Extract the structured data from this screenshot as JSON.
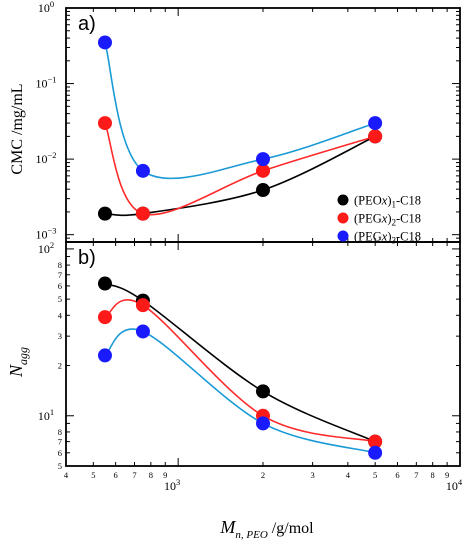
{
  "chart_data": [
    {
      "type": "scatter",
      "panel_label": "a)",
      "ylabel": "CMC /mg/mL",
      "xscale": "log",
      "yscale": "log",
      "xlim": [
        400,
        10000
      ],
      "ylim": [
        0.0008,
        1
      ],
      "y_tick_labels": [
        {
          "v": 1,
          "mant": "10",
          "exp": "0"
        },
        {
          "v": 0.1,
          "mant": "10",
          "exp": "−1"
        },
        {
          "v": 0.01,
          "mant": "10",
          "exp": "−2"
        },
        {
          "v": 0.001,
          "mant": "10",
          "exp": "−3"
        }
      ],
      "series": [
        {
          "name": "(PEOx)1-C18",
          "color": "#000000",
          "line_color": "#000000",
          "x": [
            550,
            750,
            2000,
            5000
          ],
          "y": [
            0.0019,
            0.0019,
            0.0039,
            0.02
          ]
        },
        {
          "name": "(PEGx)2-C18",
          "color": "#ff1a1a",
          "line_color": "#ff2a2a",
          "x": [
            550,
            750,
            2000,
            5000
          ],
          "y": [
            0.03,
            0.0019,
            0.007,
            0.02
          ]
        },
        {
          "name": "(PEGx)3-C18",
          "color": "#1a1aff",
          "line_color": "#1a9ad6",
          "x": [
            550,
            750,
            2000,
            5000
          ],
          "y": [
            0.35,
            0.007,
            0.01,
            0.03
          ]
        }
      ]
    },
    {
      "type": "scatter",
      "panel_label": "b)",
      "ylabel": "N",
      "ylabel_sub": "agg",
      "xlabel": "M",
      "xlabel_sub": "n, PEO",
      "xlabel_rest": " /g/mol",
      "xscale": "log",
      "yscale": "log",
      "xlim": [
        400,
        10000
      ],
      "ylim": [
        5,
        110
      ],
      "x_tick_labels": [
        {
          "v": 1000,
          "mant": "10",
          "exp": "3"
        },
        {
          "v": 10000,
          "mant": "10",
          "exp": "4"
        }
      ],
      "x_minor_labels": [
        {
          "v": 400,
          "t": "4"
        },
        {
          "v": 500,
          "t": "5"
        },
        {
          "v": 600,
          "t": "6"
        },
        {
          "v": 700,
          "t": "7"
        },
        {
          "v": 800,
          "t": "8"
        },
        {
          "v": 900,
          "t": "9"
        },
        {
          "v": 2000,
          "t": "2"
        },
        {
          "v": 3000,
          "t": "3"
        },
        {
          "v": 4000,
          "t": "4"
        },
        {
          "v": 5000,
          "t": "5"
        },
        {
          "v": 6000,
          "t": "6"
        },
        {
          "v": 7000,
          "t": "7"
        },
        {
          "v": 8000,
          "t": "8"
        },
        {
          "v": 9000,
          "t": "9"
        }
      ],
      "y_tick_labels": [
        {
          "v": 10,
          "mant": "10",
          "exp": "1"
        },
        {
          "v": 100,
          "mant": "10",
          "exp": "2"
        }
      ],
      "y_minor_labels": [
        {
          "v": 5,
          "t": "5"
        },
        {
          "v": 6,
          "t": "6"
        },
        {
          "v": 7,
          "t": "7"
        },
        {
          "v": 8,
          "t": "8"
        },
        {
          "v": 20,
          "t": "2"
        },
        {
          "v": 30,
          "t": "3"
        },
        {
          "v": 40,
          "t": "4"
        },
        {
          "v": 50,
          "t": "5"
        },
        {
          "v": 60,
          "t": "6"
        },
        {
          "v": 70,
          "t": "7"
        },
        {
          "v": 80,
          "t": "8"
        }
      ],
      "series": [
        {
          "name": "(PEOx)1-C18",
          "color": "#000000",
          "line_color": "#000000",
          "x": [
            550,
            750,
            2000,
            5000
          ],
          "y": [
            62,
            49,
            14,
            7
          ]
        },
        {
          "name": "(PEGx)2-C18",
          "color": "#ff1a1a",
          "line_color": "#ff2a2a",
          "x": [
            550,
            750,
            2000,
            5000
          ],
          "y": [
            39,
            46,
            10,
            7
          ]
        },
        {
          "name": "(PEGx)3-C18",
          "color": "#1a1aff",
          "line_color": "#1a9ad6",
          "x": [
            550,
            750,
            2000,
            5000
          ],
          "y": [
            23,
            32,
            9,
            6
          ]
        }
      ]
    }
  ],
  "legend": {
    "placement": "bottom-right of panel a)",
    "items": [
      {
        "prefix": "(PEO",
        "var": "x",
        "suffix": ")",
        "sub": "1",
        "rest": "-C18",
        "color": "#000000"
      },
      {
        "prefix": "(PEG",
        "var": "x",
        "suffix": ")",
        "sub": "2",
        "rest": "-C18",
        "color": "#ff1a1a"
      },
      {
        "prefix": "(PEG",
        "var": "x",
        "suffix": ")",
        "sub": "3",
        "rest": "-C18",
        "color": "#1a1aff"
      }
    ]
  }
}
